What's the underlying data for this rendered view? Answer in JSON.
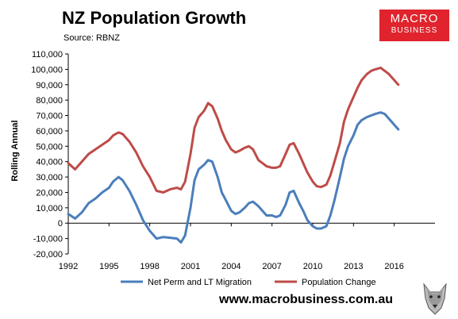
{
  "title": "NZ Population Growth",
  "source": "Source: RBNZ",
  "logo": {
    "line1": "MACRO",
    "line2": "BUSINESS"
  },
  "footer_url": "www.macrobusiness.com.au",
  "colors": {
    "migration": "#4a7ebb",
    "population": "#be4b48",
    "logo_bg": "#e0232c"
  },
  "chart_data": {
    "type": "line",
    "ylabel": "Rolling Annual",
    "ylim": [
      -20000,
      110000
    ],
    "yticks": [
      -20000,
      -10000,
      0,
      10000,
      20000,
      30000,
      40000,
      50000,
      60000,
      70000,
      80000,
      90000,
      100000,
      110000
    ],
    "ytick_labels": [
      "-20,000",
      "-10,000",
      "0",
      "10,000",
      "20,000",
      "30,000",
      "40,000",
      "50,000",
      "60,000",
      "70,000",
      "80,000",
      "90,000",
      "100,000",
      "110,000"
    ],
    "xlim": [
      1992,
      2019
    ],
    "xticks": [
      1992,
      1995,
      1998,
      2001,
      2004,
      2007,
      2010,
      2013,
      2016
    ],
    "xtick_labels": [
      "1992",
      "1995",
      "1998",
      "2001",
      "2004",
      "2007",
      "2010",
      "2013",
      "2016"
    ],
    "grid": false,
    "legend": "bottom",
    "series": [
      {
        "name": "Net Perm and LT Migration",
        "color": "#4a7ebb",
        "points": [
          [
            1992.0,
            6000
          ],
          [
            1992.5,
            3000
          ],
          [
            1993.0,
            7000
          ],
          [
            1993.5,
            13000
          ],
          [
            1994.0,
            16000
          ],
          [
            1994.5,
            20000
          ],
          [
            1995.0,
            23000
          ],
          [
            1995.3,
            27000
          ],
          [
            1995.7,
            30000
          ],
          [
            1996.0,
            28000
          ],
          [
            1996.5,
            21000
          ],
          [
            1997.0,
            12000
          ],
          [
            1997.5,
            2000
          ],
          [
            1998.0,
            -5000
          ],
          [
            1998.5,
            -10000
          ],
          [
            1999.0,
            -9000
          ],
          [
            1999.5,
            -9500
          ],
          [
            2000.0,
            -10000
          ],
          [
            2000.3,
            -12500
          ],
          [
            2000.6,
            -8000
          ],
          [
            2001.0,
            10000
          ],
          [
            2001.3,
            28000
          ],
          [
            2001.6,
            35000
          ],
          [
            2002.0,
            38000
          ],
          [
            2002.3,
            41000
          ],
          [
            2002.6,
            40000
          ],
          [
            2003.0,
            30000
          ],
          [
            2003.3,
            20000
          ],
          [
            2003.6,
            15000
          ],
          [
            2004.0,
            8000
          ],
          [
            2004.3,
            6000
          ],
          [
            2004.6,
            7000
          ],
          [
            2005.0,
            10000
          ],
          [
            2005.3,
            13000
          ],
          [
            2005.6,
            14000
          ],
          [
            2006.0,
            11000
          ],
          [
            2006.3,
            8000
          ],
          [
            2006.6,
            5000
          ],
          [
            2007.0,
            5000
          ],
          [
            2007.3,
            4000
          ],
          [
            2007.6,
            5000
          ],
          [
            2008.0,
            12000
          ],
          [
            2008.3,
            20000
          ],
          [
            2008.6,
            21000
          ],
          [
            2009.0,
            13000
          ],
          [
            2009.3,
            8000
          ],
          [
            2009.6,
            2000
          ],
          [
            2010.0,
            -2000
          ],
          [
            2010.3,
            -3500
          ],
          [
            2010.6,
            -3500
          ],
          [
            2011.0,
            -2000
          ],
          [
            2011.3,
            5000
          ],
          [
            2011.6,
            15000
          ],
          [
            2012.0,
            30000
          ],
          [
            2012.3,
            42000
          ],
          [
            2012.6,
            50000
          ],
          [
            2013.0,
            57000
          ],
          [
            2013.3,
            64000
          ],
          [
            2013.6,
            67000
          ],
          [
            2014.0,
            69000
          ],
          [
            2014.3,
            70000
          ],
          [
            2014.6,
            71000
          ],
          [
            2015.0,
            72000
          ],
          [
            2015.3,
            71000
          ],
          [
            2015.6,
            68000
          ],
          [
            2016.0,
            64000
          ],
          [
            2016.3,
            61000
          ]
        ]
      },
      {
        "name": "Population Change",
        "color": "#be4b48",
        "points": [
          [
            1992.0,
            39000
          ],
          [
            1992.5,
            35000
          ],
          [
            1993.0,
            40000
          ],
          [
            1993.5,
            45000
          ],
          [
            1994.0,
            48000
          ],
          [
            1994.5,
            51000
          ],
          [
            1995.0,
            54000
          ],
          [
            1995.3,
            57000
          ],
          [
            1995.7,
            59000
          ],
          [
            1996.0,
            58000
          ],
          [
            1996.5,
            53000
          ],
          [
            1997.0,
            46000
          ],
          [
            1997.5,
            37000
          ],
          [
            1998.0,
            30000
          ],
          [
            1998.5,
            21000
          ],
          [
            1999.0,
            20000
          ],
          [
            1999.5,
            22000
          ],
          [
            2000.0,
            23000
          ],
          [
            2000.3,
            22000
          ],
          [
            2000.6,
            27000
          ],
          [
            2001.0,
            45000
          ],
          [
            2001.3,
            62000
          ],
          [
            2001.6,
            69000
          ],
          [
            2002.0,
            73000
          ],
          [
            2002.3,
            78000
          ],
          [
            2002.6,
            76000
          ],
          [
            2003.0,
            68000
          ],
          [
            2003.3,
            60000
          ],
          [
            2003.6,
            54000
          ],
          [
            2004.0,
            48000
          ],
          [
            2004.3,
            46000
          ],
          [
            2004.6,
            47000
          ],
          [
            2005.0,
            49000
          ],
          [
            2005.3,
            50000
          ],
          [
            2005.6,
            48000
          ],
          [
            2006.0,
            41000
          ],
          [
            2006.3,
            39000
          ],
          [
            2006.6,
            37000
          ],
          [
            2007.0,
            36000
          ],
          [
            2007.3,
            36000
          ],
          [
            2007.6,
            37000
          ],
          [
            2008.0,
            45000
          ],
          [
            2008.3,
            51000
          ],
          [
            2008.6,
            52000
          ],
          [
            2009.0,
            45000
          ],
          [
            2009.3,
            39000
          ],
          [
            2009.6,
            33000
          ],
          [
            2010.0,
            27000
          ],
          [
            2010.3,
            24000
          ],
          [
            2010.6,
            23500
          ],
          [
            2011.0,
            25000
          ],
          [
            2011.3,
            31000
          ],
          [
            2011.6,
            40000
          ],
          [
            2012.0,
            52000
          ],
          [
            2012.3,
            66000
          ],
          [
            2012.6,
            74000
          ],
          [
            2013.0,
            82000
          ],
          [
            2013.3,
            88000
          ],
          [
            2013.6,
            93000
          ],
          [
            2014.0,
            97000
          ],
          [
            2014.3,
            99000
          ],
          [
            2014.6,
            100000
          ],
          [
            2015.0,
            101000
          ],
          [
            2015.3,
            99000
          ],
          [
            2015.6,
            97000
          ],
          [
            2016.0,
            93000
          ],
          [
            2016.3,
            90000
          ]
        ]
      }
    ]
  }
}
